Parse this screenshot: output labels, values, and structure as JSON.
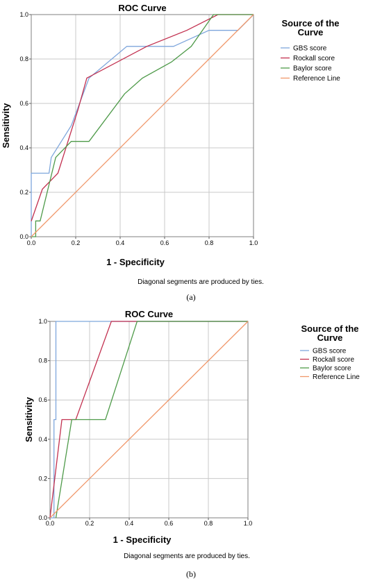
{
  "chart_data": [
    {
      "panel": "a",
      "type": "line",
      "title": "ROC Curve",
      "xlabel": "1 - Specificity",
      "ylabel": "Sensitivity",
      "xlim": [
        0,
        1
      ],
      "ylim": [
        0,
        1
      ],
      "ticks": [
        "0.0",
        "0.2",
        "0.4",
        "0.6",
        "0.8",
        "1.0"
      ],
      "tick_values": [
        0,
        0.2,
        0.4,
        0.6,
        0.8,
        1
      ],
      "grid": true,
      "legend_title": "Source of the Curve",
      "legend_position": "right",
      "note": "Diagonal segments are produced by ties.",
      "caption": "(a)",
      "series": [
        {
          "name": "GBS score",
          "color": "#7ea6dc",
          "x": [
            0,
            0,
            0.08,
            0.09,
            0.18,
            0.26,
            0.43,
            0.64,
            0.8,
            0.93,
            1.0
          ],
          "y": [
            0,
            0.286,
            0.286,
            0.357,
            0.5,
            0.714,
            0.857,
            0.857,
            0.929,
            0.929,
            1.0
          ]
        },
        {
          "name": "Rockall score",
          "color": "#c2304f",
          "x": [
            0,
            0.05,
            0.12,
            0.21,
            0.25,
            0.52,
            0.7,
            0.84,
            1.0
          ],
          "y": [
            0.07,
            0.214,
            0.286,
            0.571,
            0.714,
            0.857,
            0.929,
            1.0,
            1.0
          ]
        },
        {
          "name": "Baylor score",
          "color": "#4e9a49",
          "x": [
            0,
            0.02,
            0.02,
            0.04,
            0.11,
            0.18,
            0.26,
            0.42,
            0.5,
            0.63,
            0.72,
            0.82,
            1.0
          ],
          "y": [
            0,
            0,
            0.071,
            0.071,
            0.357,
            0.429,
            0.429,
            0.643,
            0.714,
            0.786,
            0.857,
            1.0,
            1.0
          ]
        },
        {
          "name": "Reference Line",
          "color": "#f0976a",
          "x": [
            0,
            1
          ],
          "y": [
            0,
            1
          ]
        }
      ]
    },
    {
      "panel": "b",
      "type": "line",
      "title": "ROC Curve",
      "xlabel": "1 - Specificity",
      "ylabel": "Sensitivity",
      "xlim": [
        0,
        1
      ],
      "ylim": [
        0,
        1
      ],
      "ticks": [
        "0.0",
        "0.2",
        "0.4",
        "0.6",
        "0.8",
        "1.0"
      ],
      "tick_values": [
        0,
        0.2,
        0.4,
        0.6,
        0.8,
        1
      ],
      "grid": true,
      "legend_title": "Source of the Curve",
      "legend_position": "right",
      "note": "Diagonal segments are produced by ties.",
      "caption": "(b)",
      "series": [
        {
          "name": "GBS score",
          "color": "#7ea6dc",
          "x": [
            0,
            0.02,
            0.02,
            0.03,
            0.03,
            1.0
          ],
          "y": [
            0,
            0,
            0.5,
            0.5,
            1.0,
            1.0
          ]
        },
        {
          "name": "Rockall score",
          "color": "#c2304f",
          "x": [
            0,
            0.06,
            0.13,
            0.31,
            1.0
          ],
          "y": [
            0,
            0.5,
            0.5,
            1.0,
            1.0
          ]
        },
        {
          "name": "Baylor score",
          "color": "#4e9a49",
          "x": [
            0.03,
            0.11,
            0.28,
            0.44,
            1.0
          ],
          "y": [
            0,
            0.5,
            0.5,
            1.0,
            1.0
          ]
        },
        {
          "name": "Reference Line",
          "color": "#f0976a",
          "x": [
            0,
            1
          ],
          "y": [
            0,
            1
          ]
        }
      ]
    }
  ]
}
